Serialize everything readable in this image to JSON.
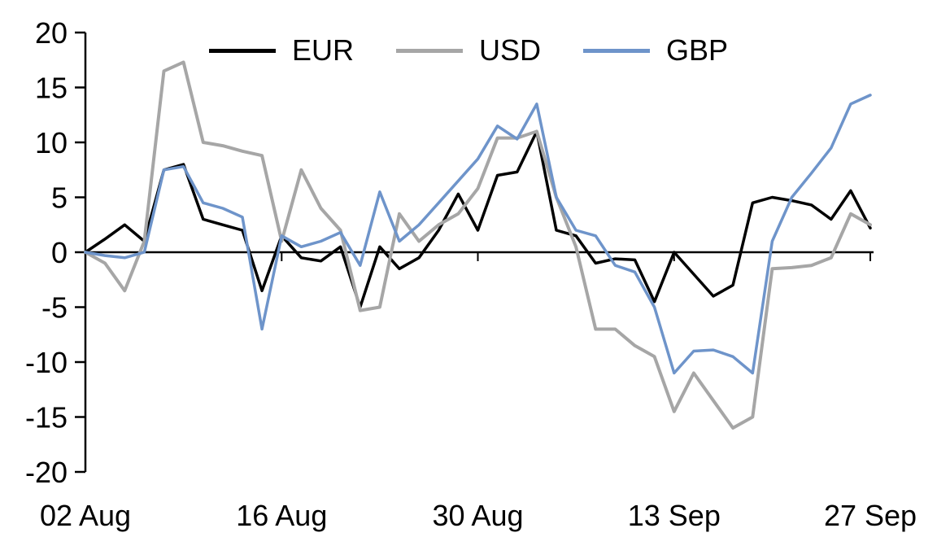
{
  "chart_data": {
    "type": "line",
    "title": "",
    "xlabel": "",
    "ylabel": "",
    "ylim": [
      -20,
      20
    ],
    "y_ticks": [
      20,
      15,
      10,
      5,
      0,
      -5,
      -10,
      -15,
      -20
    ],
    "grid": false,
    "zero_line": true,
    "legend_position": "top-center",
    "x_unit": "weekdays from 02 Aug to 27 Sep",
    "n_points": 41,
    "x_tick_indices": [
      0,
      10,
      20,
      30,
      40
    ],
    "x_tick_labels": [
      "02 Aug",
      "16 Aug",
      "30 Aug",
      "13 Sep",
      "27 Sep"
    ],
    "series": [
      {
        "name": "EUR",
        "color": "#000000",
        "values": [
          0,
          1.2,
          2.5,
          1.0,
          7.5,
          8.0,
          3.0,
          2.5,
          2.0,
          -3.5,
          1.5,
          -0.5,
          -0.8,
          0.5,
          -5.0,
          0.5,
          -1.5,
          -0.5,
          2.0,
          5.3,
          2.0,
          7.0,
          7.3,
          11.0,
          2.0,
          1.5,
          -1.0,
          -0.6,
          -0.7,
          -4.5,
          0.0,
          -2.0,
          -4.0,
          -3.0,
          4.5,
          5.0,
          4.7,
          4.3,
          3.0,
          5.6,
          2.2
        ]
      },
      {
        "name": "USD",
        "color": "#a6a6a6",
        "values": [
          0,
          -1.0,
          -3.5,
          1.0,
          16.5,
          17.3,
          10.0,
          9.7,
          9.2,
          8.8,
          1.0,
          7.5,
          4.0,
          2.0,
          -5.3,
          -5.0,
          3.5,
          1.0,
          2.5,
          3.5,
          5.8,
          10.4,
          10.4,
          11.0,
          5.0,
          0.5,
          -7.0,
          -7.0,
          -8.5,
          -9.5,
          -14.5,
          -11.0,
          -13.5,
          -16.0,
          -15.0,
          -1.5,
          -1.4,
          -1.2,
          -0.5,
          3.5,
          2.5
        ]
      },
      {
        "name": "GBP",
        "color": "#6e94ca",
        "values": [
          0,
          -0.3,
          -0.5,
          0.0,
          7.5,
          7.8,
          4.5,
          4.0,
          3.2,
          -7.0,
          1.5,
          0.5,
          1.0,
          1.8,
          -1.2,
          5.5,
          1.0,
          2.5,
          4.5,
          6.5,
          8.5,
          11.5,
          10.3,
          13.5,
          5.0,
          2.0,
          1.5,
          -1.2,
          -1.8,
          -5.0,
          -11.0,
          -9.0,
          -8.9,
          -9.5,
          -11.0,
          1.0,
          5.0,
          7.2,
          9.5,
          13.5,
          14.3
        ]
      }
    ]
  },
  "colors": {
    "background": "#ffffff",
    "axis": "#000000",
    "text": "#000000"
  }
}
